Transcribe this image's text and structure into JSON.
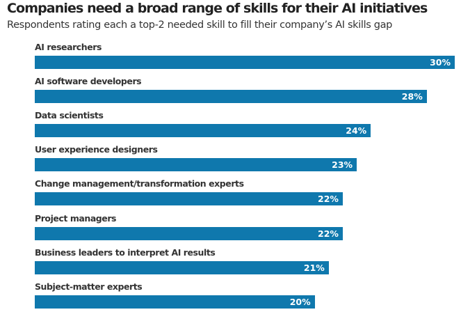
{
  "chart_data": {
    "type": "bar",
    "orientation": "horizontal",
    "title": "Companies need a broad range of skills for their AI initiatives",
    "subtitle": "Respondents rating each a top-2 needed skill to fill their company’s AI skills gap",
    "categories": [
      "AI researchers",
      "AI software developers",
      "Data scientists",
      "User experience designers",
      "Change management/transformation experts",
      "Project managers",
      "Business leaders to interpret AI results",
      "Subject-matter experts"
    ],
    "values": [
      30,
      28,
      24,
      23,
      22,
      22,
      21,
      20
    ],
    "value_labels": [
      "30%",
      "28%",
      "24%",
      "23%",
      "22%",
      "22%",
      "21%",
      "20%"
    ],
    "xlim": [
      0,
      30
    ],
    "grid": false,
    "legend": "none",
    "colors": {
      "bar": "#0f78ad",
      "label": "#333333",
      "value_text": "#ffffff"
    }
  }
}
